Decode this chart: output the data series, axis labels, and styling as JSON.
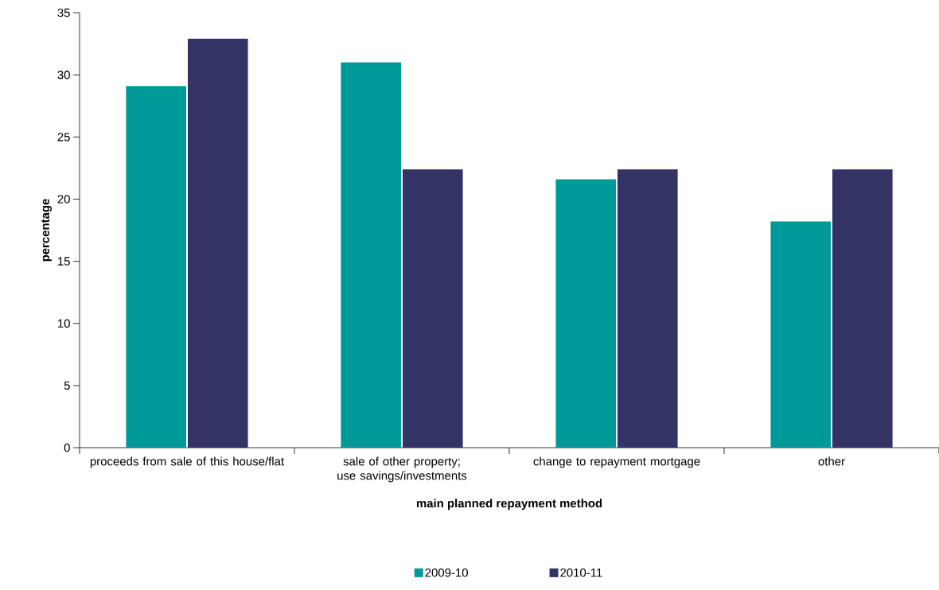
{
  "chart_data": {
    "type": "bar",
    "xlabel": "main planned repayment method",
    "ylabel": "percentage",
    "categories": [
      "proceeds from sale of this house/flat",
      "sale of other property; use savings/investments",
      "change to repayment mortgage",
      "other"
    ],
    "series": [
      {
        "name": "2009-10",
        "color": "#009999",
        "values": [
          29.1,
          31.0,
          21.6,
          18.2
        ]
      },
      {
        "name": "2010-11",
        "color": "#333366",
        "values": [
          32.9,
          22.4,
          22.4,
          22.4
        ]
      }
    ],
    "ylim": [
      0,
      35
    ],
    "yticks": [
      0,
      5,
      10,
      15,
      20,
      25,
      30,
      35
    ],
    "legend": "bottom",
    "grid": false
  }
}
